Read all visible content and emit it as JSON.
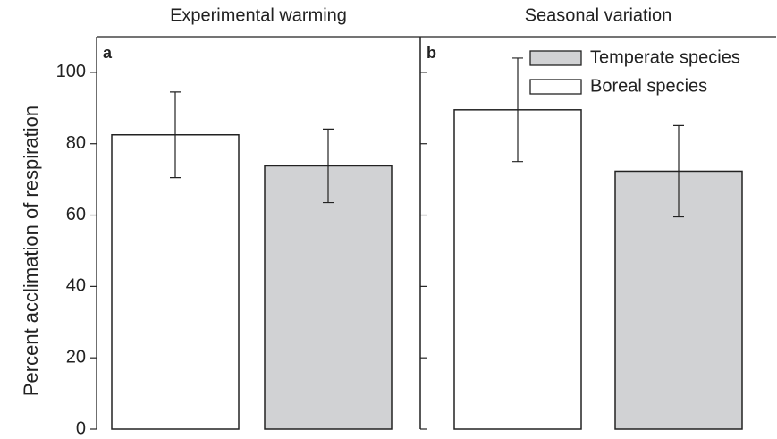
{
  "chart_data": [
    {
      "type": "bar",
      "title": "Experimental warming",
      "panel_label": "a",
      "ylabel": "Percent acclimation of respiration",
      "categories": [
        null
      ],
      "series": [
        {
          "color": "#ffffff",
          "values": [
            82.5
          ],
          "errors": [
            12
          ]
        },
        {
          "color": "#d1d2d4",
          "values": [
            73.8
          ],
          "errors": [
            10.3
          ]
        }
      ],
      "ylim": [
        0,
        110
      ],
      "yticks": [
        0,
        20,
        40,
        60,
        80,
        100
      ]
    },
    {
      "type": "bar",
      "title": "Seasonal variation",
      "panel_label": "b",
      "categories": [
        null
      ],
      "series": [
        {
          "name": "Boreal species",
          "color": "#ffffff",
          "values": [
            89.5
          ],
          "errors": [
            14.5
          ]
        },
        {
          "name": "Temperate species",
          "color": "#d1d2d4",
          "values": [
            72.3
          ],
          "errors": [
            12.8
          ]
        }
      ],
      "ylim": [
        0,
        110
      ],
      "yticks": [
        0,
        20,
        40,
        60,
        80,
        100
      ],
      "legend": "upper right"
    }
  ]
}
